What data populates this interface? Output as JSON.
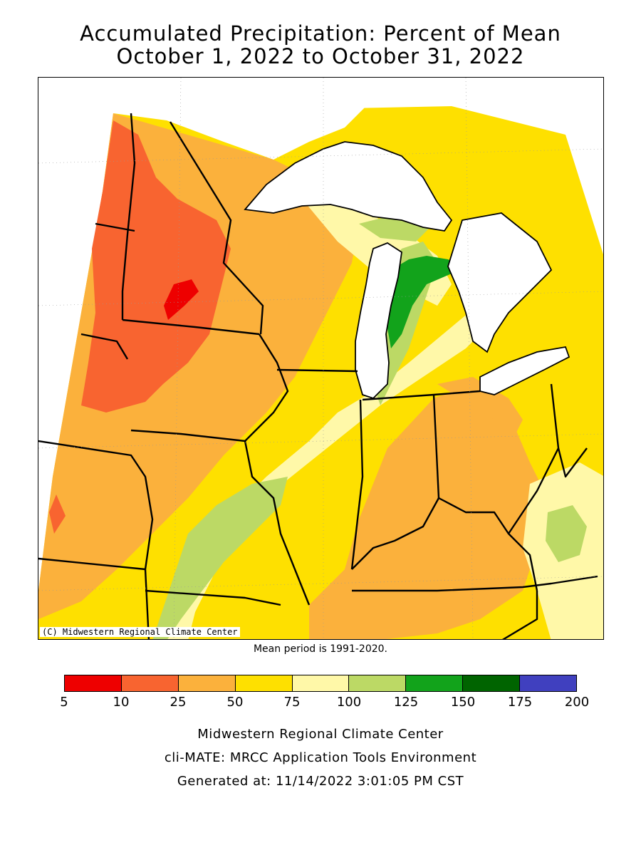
{
  "title_line1": "Accumulated Precipitation: Percent of Mean",
  "title_line2": "October 1, 2022 to October 31, 2022",
  "copyright": "(C) Midwestern Regional Climate Center",
  "mean_period": "Mean period is 1991-2020.",
  "legend": {
    "bins": [
      {
        "from": 5,
        "to": 10,
        "color": "#ee0000"
      },
      {
        "from": 10,
        "to": 25,
        "color": "#f86430"
      },
      {
        "from": 25,
        "to": 50,
        "color": "#fbb13c"
      },
      {
        "from": 50,
        "to": 75,
        "color": "#fee000"
      },
      {
        "from": 75,
        "to": 100,
        "color": "#fff8a8"
      },
      {
        "from": 100,
        "to": 125,
        "color": "#bcd965"
      },
      {
        "from": 125,
        "to": 150,
        "color": "#12a31b"
      },
      {
        "from": 150,
        "to": 175,
        "color": "#006400"
      },
      {
        "from": 175,
        "to": 200,
        "color": "#4040bf"
      }
    ],
    "tick_labels": [
      "5",
      "10",
      "25",
      "50",
      "75",
      "100",
      "125",
      "150",
      "175",
      "200"
    ]
  },
  "footer": {
    "line1": "Midwestern Regional Climate Center",
    "line2": "cli-MATE: MRCC Application Tools Environment",
    "line3": "Generated at: 11/14/2022 3:01:05 PM CST"
  }
}
